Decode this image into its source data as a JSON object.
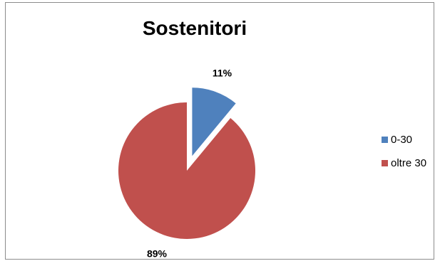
{
  "chart_data": {
    "type": "pie",
    "title": "Sostenitori",
    "categories": [
      "0-30",
      "oltre 30"
    ],
    "values": [
      11,
      89
    ],
    "data_labels": [
      "11%",
      "89%"
    ],
    "colors": [
      "#4f81bd",
      "#c0504d"
    ],
    "exploded": [
      true,
      false
    ],
    "legend_position": "right"
  }
}
